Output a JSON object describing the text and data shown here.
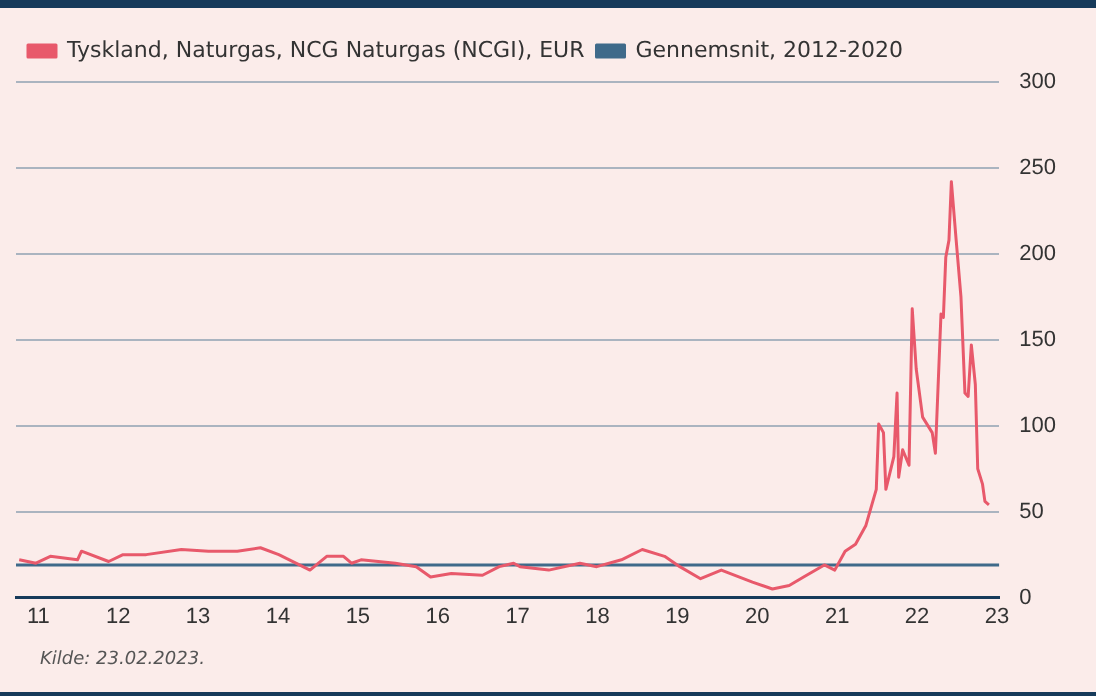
{
  "chart_data": {
    "type": "line",
    "x": [
      2010.76,
      2010.97,
      2011.15,
      2011.49,
      2011.54,
      2011.88,
      2012.06,
      2012.35,
      2012.79,
      2013.13,
      2013.49,
      2013.78,
      2014.01,
      2014.4,
      2014.61,
      2014.82,
      2014.92,
      2015.04,
      2015.47,
      2015.73,
      2015.91,
      2016.17,
      2016.56,
      2016.77,
      2016.95,
      2017.03,
      2017.39,
      2017.78,
      2017.99,
      2018.3,
      2018.56,
      2018.84,
      2019.03,
      2019.29,
      2019.55,
      2019.94,
      2020.19,
      2020.4,
      2020.58,
      2020.84,
      2020.97,
      2021.1,
      2021.23,
      2021.36,
      2021.49,
      2021.52,
      2021.58,
      2021.61,
      2021.71,
      2021.75,
      2021.77,
      2021.82,
      2021.9,
      2021.94,
      2021.99,
      2022.07,
      2022.19,
      2022.23,
      2022.3,
      2022.33,
      2022.36,
      2022.4,
      2022.43,
      2022.49,
      2022.55,
      2022.6,
      2022.64,
      2022.68,
      2022.73,
      2022.76,
      2022.82,
      2022.85,
      2022.9
    ],
    "series": [
      {
        "name": "Tyskland, Naturgas, NCG Naturgas (NCGI), EUR",
        "color": "#e8596b",
        "values": [
          22,
          20,
          24,
          22,
          27,
          21,
          25,
          25,
          28,
          27,
          27,
          29,
          25,
          16,
          24,
          24,
          20,
          22,
          20,
          18,
          12,
          14,
          13,
          18,
          20,
          18,
          16,
          20,
          18,
          22,
          28,
          24,
          18,
          11,
          16,
          9,
          5,
          7,
          12,
          19,
          16,
          27,
          31,
          42,
          63,
          101,
          96,
          63,
          82,
          119,
          70,
          86,
          77,
          168,
          133,
          105,
          96,
          84,
          165,
          163,
          198,
          208,
          242,
          208,
          175,
          119,
          117,
          147,
          124,
          75,
          66,
          56,
          54
        ]
      },
      {
        "name": "Gennemsnit, 2012-2020",
        "color": "#3f6a8a",
        "x": [
          2010.72,
          2023.03
        ],
        "values": [
          19,
          19
        ]
      }
    ],
    "xlim": [
      2010.72,
      2023.03
    ],
    "xticks": [
      {
        "value": 2011,
        "label": "11"
      },
      {
        "value": 2012,
        "label": "12"
      },
      {
        "value": 2013,
        "label": "13"
      },
      {
        "value": 2014,
        "label": "14"
      },
      {
        "value": 2015,
        "label": "15"
      },
      {
        "value": 2016,
        "label": "16"
      },
      {
        "value": 2017,
        "label": "17"
      },
      {
        "value": 2018,
        "label": "18"
      },
      {
        "value": 2019,
        "label": "19"
      },
      {
        "value": 2020,
        "label": "20"
      },
      {
        "value": 2021,
        "label": "21"
      },
      {
        "value": 2022,
        "label": "22"
      },
      {
        "value": 2023,
        "label": "23"
      }
    ],
    "ylim": [
      0,
      300
    ],
    "yticks": [
      0,
      50,
      100,
      150,
      200,
      250,
      300
    ],
    "grid": "y",
    "legend": "top left",
    "marker": "none",
    "line_style": "solid",
    "annotations": [
      "Kilde: 23.02.2023."
    ]
  }
}
